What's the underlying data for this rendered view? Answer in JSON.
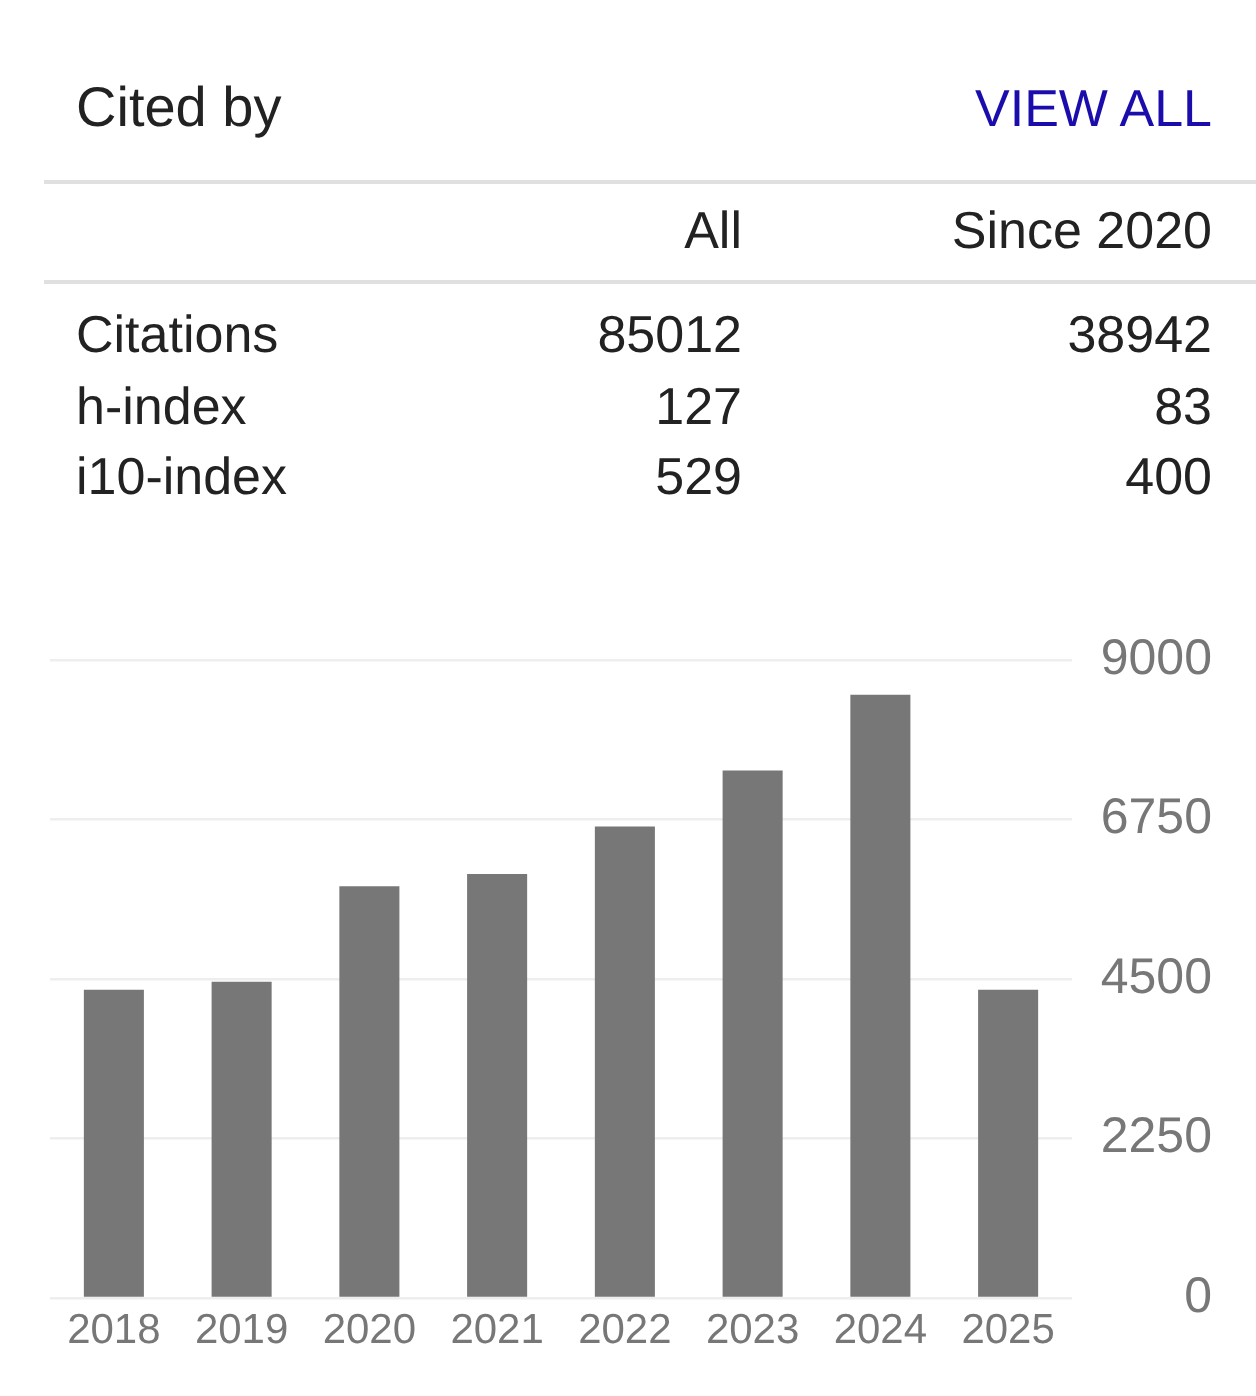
{
  "chart_data": [
    {
      "type": "other",
      "title": "Cited by",
      "categories": [
        "All",
        "Since 2020"
      ],
      "y_categories": [
        "Citations",
        "h-index",
        "i10-index"
      ],
      "annotations": [
        "VIEW ALL",
        "85012",
        "38942",
        "127",
        "83",
        "529",
        "400"
      ]
    },
    {
      "type": "bar",
      "categories": [
        "2018",
        "2019",
        "2020",
        "2021",
        "2022",
        "2023",
        "2024",
        "2025"
      ],
      "values": [
        4350,
        4460,
        5810,
        5980,
        6650,
        7440,
        8510,
        4350
      ],
      "color": "#777777",
      "ylim": [
        0,
        9000
      ],
      "yticks": [
        0,
        2250,
        4500,
        6750,
        9000
      ],
      "grid": "y"
    }
  ]
}
